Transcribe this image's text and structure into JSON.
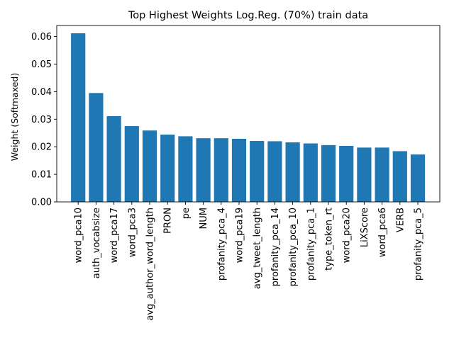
{
  "chart_data": {
    "type": "bar",
    "title": "Top Highest Weights Log.Reg. (70%) train data",
    "xlabel": "",
    "ylabel": "Weight (Softmaxed)",
    "ylim": [
      0,
      0.064
    ],
    "yticks": [
      "0.00",
      "0.01",
      "0.02",
      "0.03",
      "0.04",
      "0.05",
      "0.06"
    ],
    "grid": false,
    "bar_color": "#1f77b4",
    "categories": [
      "word_pca10",
      "auth_vocabsize",
      "word_pca17",
      "word_pca3",
      "avg_author_word_length",
      "PRON",
      "pe",
      "NUM",
      "profanity_pca_4",
      "word_pca19",
      "avg_tweet_length",
      "profanity_pca_14",
      "profanity_pca_10",
      "profanity_pca_1",
      "type_token_rt",
      "word_pca20",
      "LiXScore",
      "word_pca6",
      "VERB",
      "profanity_pca_5"
    ],
    "values": [
      0.0612,
      0.0395,
      0.0311,
      0.0275,
      0.0259,
      0.0244,
      0.0238,
      0.0231,
      0.0231,
      0.0229,
      0.0221,
      0.022,
      0.0216,
      0.0212,
      0.0206,
      0.0203,
      0.0197,
      0.0197,
      0.0184,
      0.0172
    ]
  }
}
